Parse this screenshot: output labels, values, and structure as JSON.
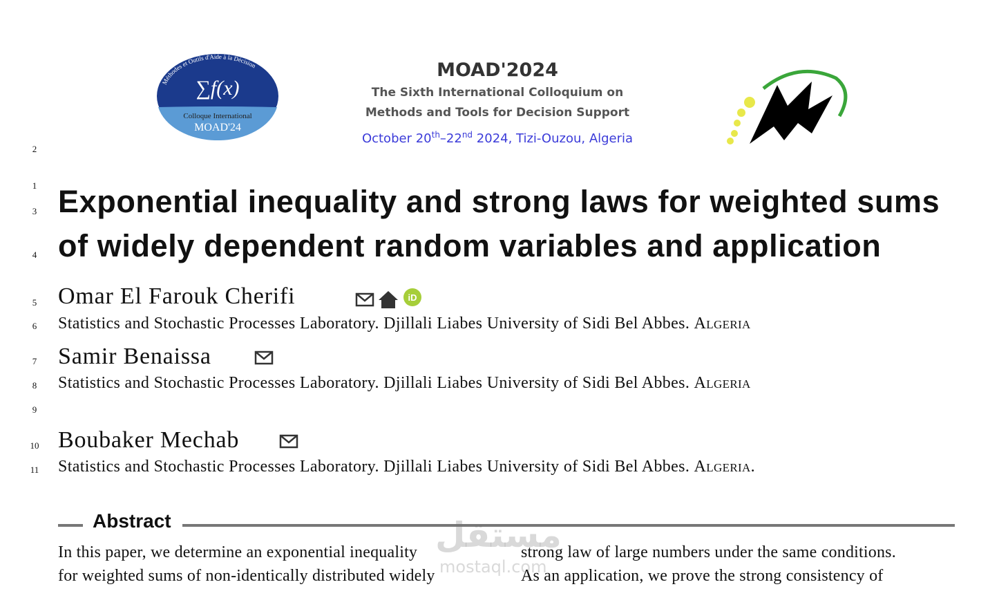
{
  "header": {
    "logo_left": {
      "symbol": "∑f(x)",
      "arc": "Méthodes et Outils d'Aide à la Décision",
      "line1": "Colloque International",
      "line2": "MOAD'24"
    },
    "conference": "MOAD'2024",
    "subtitle": [
      "The Sixth International Colloquium on",
      "Methods and Tools for Decision Support"
    ],
    "date": {
      "start": "October 20",
      "start_suffix": "th",
      "end": "–22",
      "end_suffix": "nd",
      "rest": " 2024, Tizi-Ouzou, Algeria"
    }
  },
  "line_numbers": [
    2,
    1,
    3,
    4,
    5,
    6,
    7,
    8,
    9,
    10,
    11
  ],
  "title": [
    "Exponential inequality and strong laws for weighted sums",
    "of widely dependent random variables and application"
  ],
  "authors": [
    {
      "name": "Omar El Farouk Cherifi",
      "affiliation": "Statistics and Stochastic Processes Laboratory. Djillali Liabes University of Sidi Bel Abbes.",
      "country": "Algeria"
    },
    {
      "name": "Samir Benaissa",
      "affiliation": "Statistics and Stochastic Processes Laboratory. Djillali Liabes University of Sidi Bel Abbes.",
      "country": "Algeria"
    },
    {
      "name": "Boubaker Mechab",
      "affiliation": "Statistics and Stochastic Processes Laboratory. Djillali Liabes University of Sidi Bel Abbes.",
      "country": "Algeria."
    }
  ],
  "abstract": {
    "heading": "Abstract",
    "left": [
      "In this paper, we determine an exponential inequality",
      "for weighted sums of non-identically distributed widely"
    ],
    "right": [
      "strong law of large numbers under the same conditions.",
      "As an application, we prove the strong consistency of"
    ]
  },
  "watermark": [
    "مستقل",
    "mostaql.com"
  ]
}
